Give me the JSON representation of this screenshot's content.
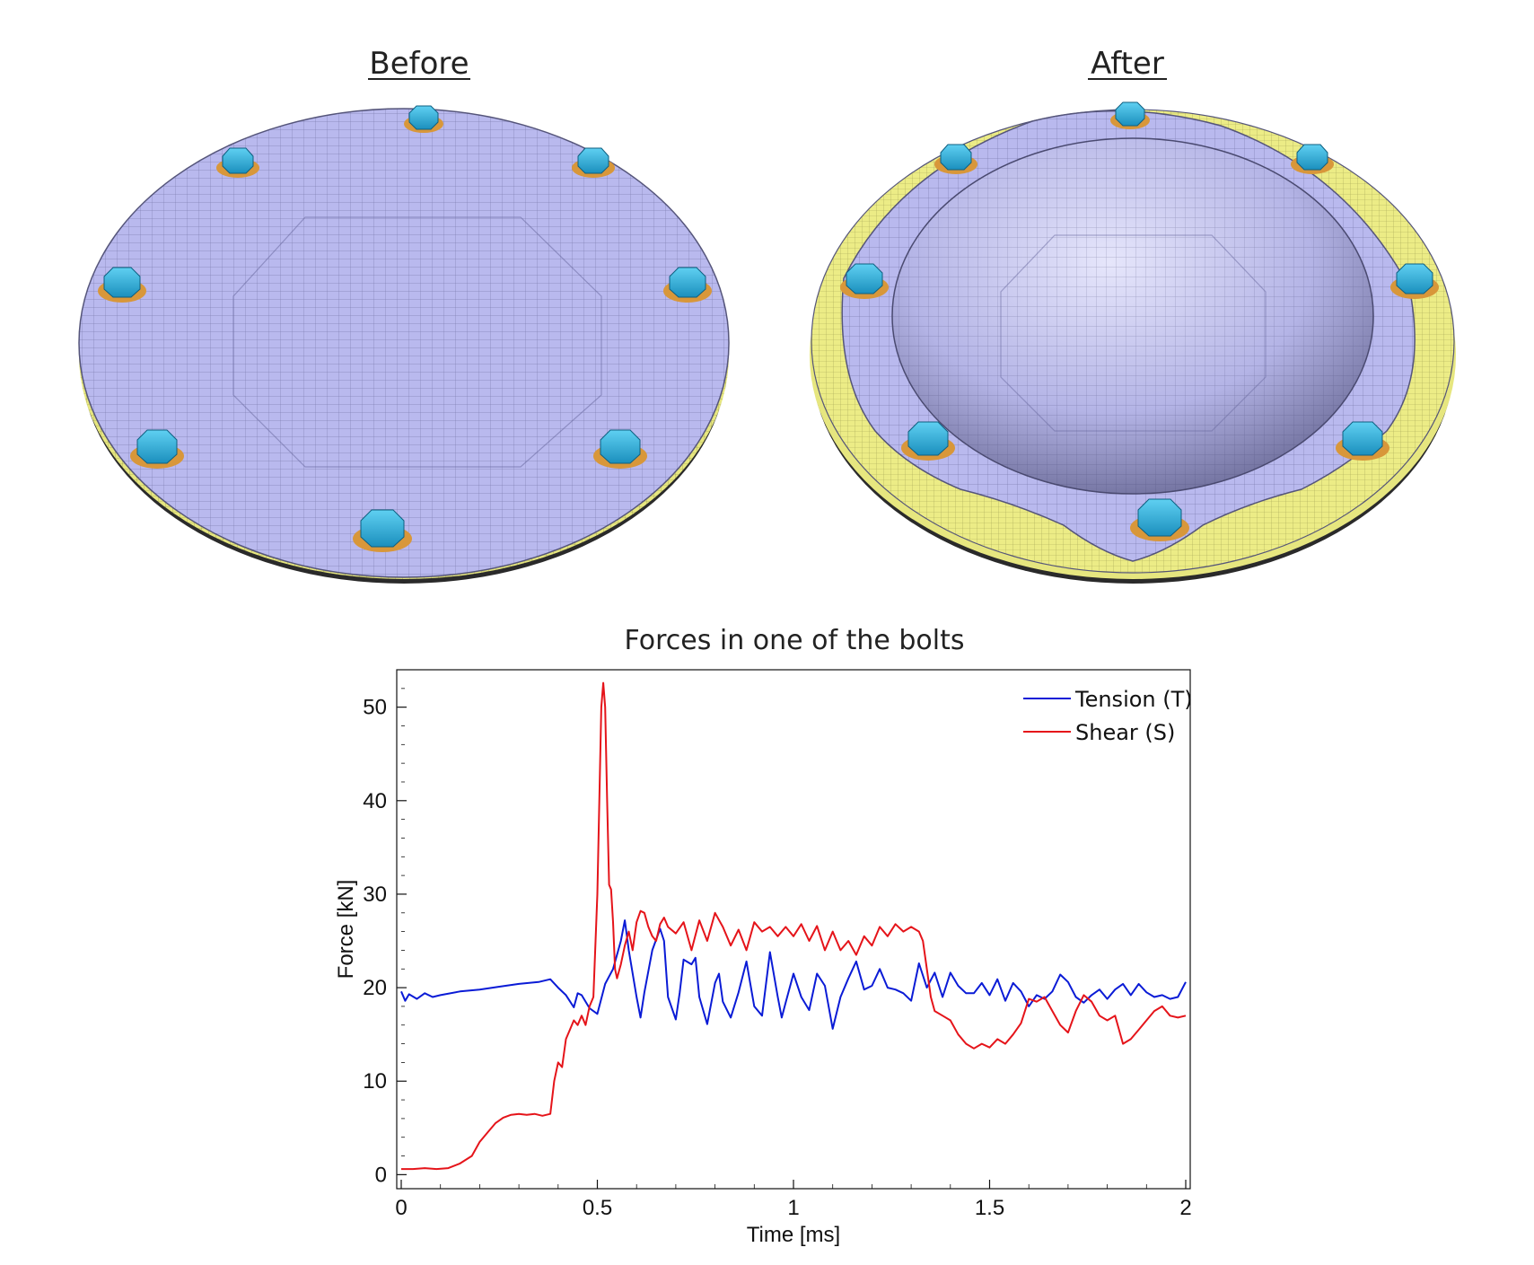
{
  "panels": {
    "before_label": "Before",
    "after_label": "After",
    "colors": {
      "plate_top": "#b9b9ee",
      "plate_edge": "#e3e47c",
      "mesh_line": "#3c3c6a",
      "bolt": "#31b1dd",
      "washer": "#d8973a"
    }
  },
  "chart_data": {
    "type": "line",
    "title": "Forces in one of the bolts",
    "xlabel": "Time [ms]",
    "ylabel": "Force [kN]",
    "xlim": [
      0,
      2
    ],
    "ylim": [
      -1.5,
      54
    ],
    "xticks": [
      0,
      0.5,
      1,
      1.5,
      2
    ],
    "xtick_labels": [
      "0",
      "0.5",
      "1",
      "1.5",
      "2"
    ],
    "yticks": [
      0,
      10,
      20,
      30,
      40,
      50
    ],
    "ytick_labels": [
      "0",
      "10",
      "20",
      "30",
      "40",
      "50"
    ],
    "grid": false,
    "legend_position": "top-right",
    "series": [
      {
        "name": "Tension (T)",
        "color": "#0a1bd6",
        "x": [
          0,
          0.01,
          0.02,
          0.04,
          0.06,
          0.08,
          0.1,
          0.15,
          0.2,
          0.25,
          0.3,
          0.35,
          0.38,
          0.4,
          0.42,
          0.44,
          0.45,
          0.46,
          0.48,
          0.5,
          0.52,
          0.54,
          0.56,
          0.57,
          0.58,
          0.6,
          0.61,
          0.62,
          0.64,
          0.66,
          0.67,
          0.68,
          0.7,
          0.71,
          0.72,
          0.74,
          0.75,
          0.76,
          0.78,
          0.8,
          0.81,
          0.82,
          0.84,
          0.86,
          0.88,
          0.9,
          0.92,
          0.94,
          0.96,
          0.97,
          0.98,
          1.0,
          1.02,
          1.04,
          1.06,
          1.08,
          1.1,
          1.12,
          1.14,
          1.16,
          1.18,
          1.2,
          1.22,
          1.24,
          1.26,
          1.28,
          1.3,
          1.32,
          1.34,
          1.36,
          1.38,
          1.4,
          1.42,
          1.44,
          1.46,
          1.48,
          1.5,
          1.52,
          1.54,
          1.56,
          1.58,
          1.6,
          1.62,
          1.64,
          1.66,
          1.68,
          1.7,
          1.72,
          1.74,
          1.76,
          1.78,
          1.8,
          1.82,
          1.84,
          1.86,
          1.88,
          1.9,
          1.92,
          1.94,
          1.96,
          1.98,
          2.0
        ],
        "values": [
          19.6,
          18.6,
          19.3,
          18.8,
          19.4,
          19.0,
          19.2,
          19.6,
          19.8,
          20.1,
          20.4,
          20.6,
          20.9,
          20.0,
          19.2,
          17.9,
          19.4,
          19.2,
          17.8,
          17.2,
          20.4,
          22.0,
          25.0,
          27.2,
          24.0,
          19.0,
          16.8,
          19.5,
          24.0,
          26.3,
          25.0,
          19.0,
          16.6,
          19.5,
          23.0,
          22.5,
          23.2,
          19.0,
          16.1,
          20.5,
          21.5,
          18.5,
          16.8,
          19.5,
          22.8,
          18.0,
          17.0,
          23.8,
          19.0,
          16.8,
          18.4,
          21.5,
          19.0,
          17.6,
          21.5,
          20.2,
          15.6,
          19.0,
          21.0,
          22.8,
          19.8,
          20.2,
          22.0,
          20.0,
          19.8,
          19.4,
          18.6,
          22.6,
          20.0,
          21.6,
          19.0,
          21.6,
          20.2,
          19.4,
          19.4,
          20.5,
          19.2,
          20.9,
          18.6,
          20.5,
          19.6,
          18.0,
          19.2,
          18.8,
          19.6,
          21.4,
          20.6,
          19.0,
          18.4,
          19.2,
          19.8,
          18.8,
          19.8,
          20.4,
          19.2,
          20.4,
          19.5,
          19.0,
          19.2,
          18.8,
          19.0,
          20.6
        ]
      },
      {
        "name": "Shear (S)",
        "color": "#e5141a",
        "x": [
          0,
          0.03,
          0.06,
          0.09,
          0.12,
          0.15,
          0.18,
          0.2,
          0.22,
          0.24,
          0.26,
          0.28,
          0.3,
          0.32,
          0.34,
          0.36,
          0.38,
          0.39,
          0.4,
          0.41,
          0.42,
          0.43,
          0.44,
          0.45,
          0.46,
          0.47,
          0.48,
          0.49,
          0.5,
          0.505,
          0.51,
          0.515,
          0.52,
          0.525,
          0.53,
          0.535,
          0.54,
          0.545,
          0.55,
          0.56,
          0.57,
          0.58,
          0.59,
          0.6,
          0.61,
          0.62,
          0.63,
          0.64,
          0.65,
          0.66,
          0.67,
          0.68,
          0.7,
          0.72,
          0.74,
          0.76,
          0.78,
          0.8,
          0.82,
          0.84,
          0.86,
          0.88,
          0.9,
          0.92,
          0.94,
          0.96,
          0.98,
          1.0,
          1.02,
          1.04,
          1.06,
          1.08,
          1.1,
          1.12,
          1.14,
          1.16,
          1.18,
          1.2,
          1.22,
          1.24,
          1.26,
          1.28,
          1.3,
          1.32,
          1.33,
          1.34,
          1.35,
          1.36,
          1.38,
          1.4,
          1.42,
          1.44,
          1.46,
          1.48,
          1.5,
          1.52,
          1.54,
          1.56,
          1.58,
          1.6,
          1.62,
          1.64,
          1.66,
          1.68,
          1.7,
          1.72,
          1.74,
          1.76,
          1.78,
          1.8,
          1.82,
          1.84,
          1.86,
          1.88,
          1.9,
          1.92,
          1.94,
          1.96,
          1.98,
          2.0
        ],
        "values": [
          0.6,
          0.6,
          0.7,
          0.6,
          0.7,
          1.2,
          2.0,
          3.5,
          4.5,
          5.5,
          6.1,
          6.4,
          6.5,
          6.4,
          6.5,
          6.3,
          6.5,
          10.0,
          12.0,
          11.5,
          14.5,
          15.5,
          16.5,
          16.0,
          17.0,
          16.0,
          18.0,
          19.0,
          30.0,
          40.0,
          50.0,
          52.6,
          50.0,
          40.0,
          31.0,
          30.5,
          27.0,
          22.0,
          21.0,
          22.5,
          24.5,
          26.0,
          24.0,
          27.0,
          28.2,
          28.0,
          26.5,
          25.5,
          25.0,
          26.8,
          27.5,
          26.5,
          25.8,
          27.0,
          24.0,
          27.2,
          25.0,
          28.0,
          26.5,
          24.5,
          26.2,
          24.0,
          27.0,
          26.0,
          26.5,
          25.5,
          26.5,
          25.5,
          26.8,
          25.0,
          26.6,
          24.0,
          26.0,
          24.0,
          25.0,
          23.5,
          25.5,
          24.5,
          26.5,
          25.5,
          26.8,
          26.0,
          26.5,
          26.0,
          25.0,
          22.0,
          19.0,
          17.5,
          17.0,
          16.5,
          15.0,
          14.0,
          13.5,
          14.0,
          13.6,
          14.5,
          14.0,
          15.0,
          16.2,
          18.8,
          18.5,
          19.0,
          17.5,
          16.0,
          15.2,
          17.5,
          19.2,
          18.5,
          17.0,
          16.5,
          17.0,
          14.0,
          14.5,
          15.5,
          16.5,
          17.5,
          18.0,
          17.0,
          16.8,
          17.0
        ]
      }
    ]
  }
}
